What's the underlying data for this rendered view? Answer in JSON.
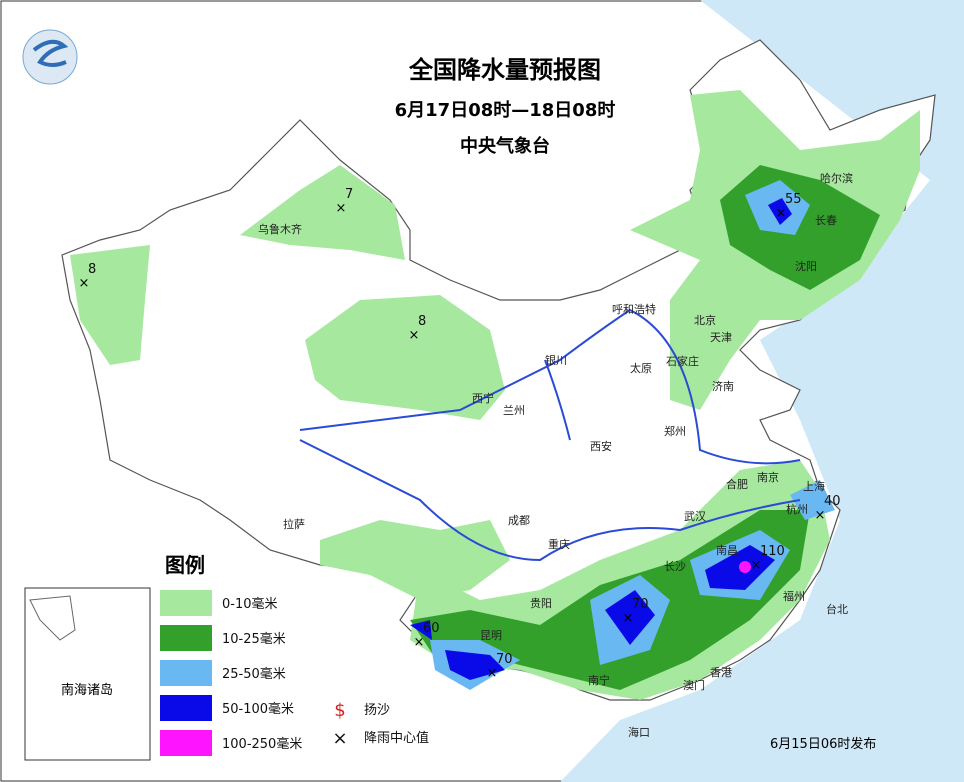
{
  "header": {
    "title": "全国降水量预报图",
    "period": "6月17日08时—18日08时",
    "issuer": "中央气象台"
  },
  "legend": {
    "title": "图例",
    "items": [
      {
        "label": "0-10毫米",
        "color": "#a6e89e"
      },
      {
        "label": "10-25毫米",
        "color": "#33a02c"
      },
      {
        "label": "25-50毫米",
        "color": "#6ab8f2"
      },
      {
        "label": "50-100毫米",
        "color": "#0a0ae8"
      },
      {
        "label": "100-250毫米",
        "color": "#ff14ff"
      }
    ],
    "symbols": [
      {
        "mark": "$",
        "label": "扬沙"
      },
      {
        "mark": "×",
        "label": "降雨中心值"
      }
    ]
  },
  "inset": {
    "label": "南海诸岛"
  },
  "cities": [
    "乌鲁木齐",
    "哈尔滨",
    "长春",
    "沈阳",
    "呼和浩特",
    "北京",
    "天津",
    "石家庄",
    "银川",
    "太原",
    "济南",
    "西宁",
    "兰州",
    "郑州",
    "西安",
    "合肥",
    "南京",
    "上海",
    "拉萨",
    "成都",
    "武汉",
    "杭州",
    "重庆",
    "长沙",
    "南昌",
    "贵阳",
    "福州",
    "台北",
    "昆明",
    "南宁",
    "香港",
    "澳门",
    "海口"
  ],
  "rain_centers": [
    "7",
    "8",
    "8",
    "55",
    "40",
    "110",
    "70",
    "60",
    "70"
  ],
  "footer": {
    "issued": "6月15日06时发布"
  }
}
